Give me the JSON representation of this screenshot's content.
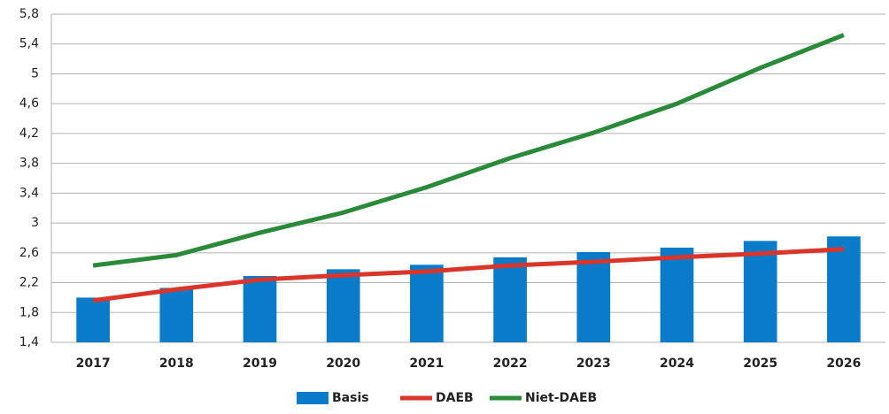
{
  "chart_data": {
    "type": "combo",
    "categories": [
      "2017",
      "2018",
      "2019",
      "2020",
      "2021",
      "2022",
      "2023",
      "2024",
      "2025",
      "2026"
    ],
    "series": [
      {
        "name": "Basis",
        "type": "bar",
        "color": "#0a7bc9",
        "values": [
          2.0,
          2.13,
          2.29,
          2.38,
          2.44,
          2.54,
          2.61,
          2.67,
          2.76,
          2.82
        ]
      },
      {
        "name": "DAEB",
        "type": "line",
        "color": "#d9352a",
        "values": [
          1.96,
          2.11,
          2.24,
          2.3,
          2.35,
          2.43,
          2.48,
          2.54,
          2.59,
          2.65
        ]
      },
      {
        "name": "Niet-DAEB",
        "type": "line",
        "color": "#2a8a3a",
        "values": [
          2.43,
          2.57,
          2.87,
          3.14,
          3.48,
          3.87,
          4.21,
          4.6,
          5.08,
          5.52
        ]
      }
    ],
    "ylim": [
      1.4,
      5.8
    ],
    "yticks": [
      {
        "value": 1.4,
        "label": "1,4"
      },
      {
        "value": 1.8,
        "label": "1,8"
      },
      {
        "value": 2.2,
        "label": "2,2"
      },
      {
        "value": 2.6,
        "label": "2,6"
      },
      3,
      {
        "value": 3.4,
        "label": "3,4"
      },
      {
        "value": 3.8,
        "label": "3,8"
      },
      {
        "value": 4.2,
        "label": "4,2"
      },
      {
        "value": 4.6,
        "label": "4,6"
      },
      5,
      {
        "value": 5.4,
        "label": "5,4"
      },
      {
        "value": 5.8,
        "label": "5,8"
      }
    ],
    "grid": true,
    "legend": "bottom"
  }
}
